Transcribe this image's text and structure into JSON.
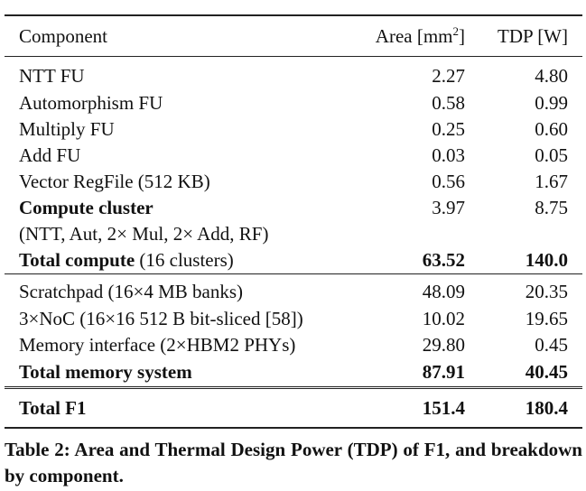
{
  "table": {
    "headers": {
      "component": "Component",
      "area_prefix": "Area [mm",
      "area_sup": "2",
      "area_suffix": "]",
      "tdp": "TDP [W]"
    },
    "compute_rows": [
      {
        "name": "NTT FU",
        "area": "2.27",
        "tdp": "4.80"
      },
      {
        "name": "Automorphism FU",
        "area": "0.58",
        "tdp": "0.99"
      },
      {
        "name": "Multiply FU",
        "area": "0.25",
        "tdp": "0.60"
      },
      {
        "name": "Add FU",
        "area": "0.03",
        "tdp": "0.05"
      },
      {
        "name": "Vector RegFile (512 KB)",
        "area": "0.56",
        "tdp": "1.67"
      }
    ],
    "cluster": {
      "name": "Compute cluster",
      "area": "3.97",
      "tdp": "8.75",
      "detail": "(NTT, Aut, 2× Mul, 2× Add, RF)"
    },
    "total_compute": {
      "name": "Total compute",
      "note": " (16 clusters)",
      "area": "63.52",
      "tdp": "140.0"
    },
    "memory_rows": [
      {
        "name": "Scratchpad (16×4 MB banks)",
        "area": "48.09",
        "tdp": "20.35"
      },
      {
        "name": "3×NoC (16×16 512 B bit-sliced [58])",
        "area": "10.02",
        "tdp": "19.65"
      },
      {
        "name": "Memory interface (2×HBM2 PHYs)",
        "area": "29.80",
        "tdp": "0.45"
      }
    ],
    "total_memory": {
      "name": "Total memory system",
      "area": "87.91",
      "tdp": "40.45"
    },
    "total": {
      "name": "Total F1",
      "area": "151.4",
      "tdp": "180.4"
    }
  },
  "caption": "Table 2: Area and Thermal Design Power (TDP) of F1, and breakdown by component."
}
